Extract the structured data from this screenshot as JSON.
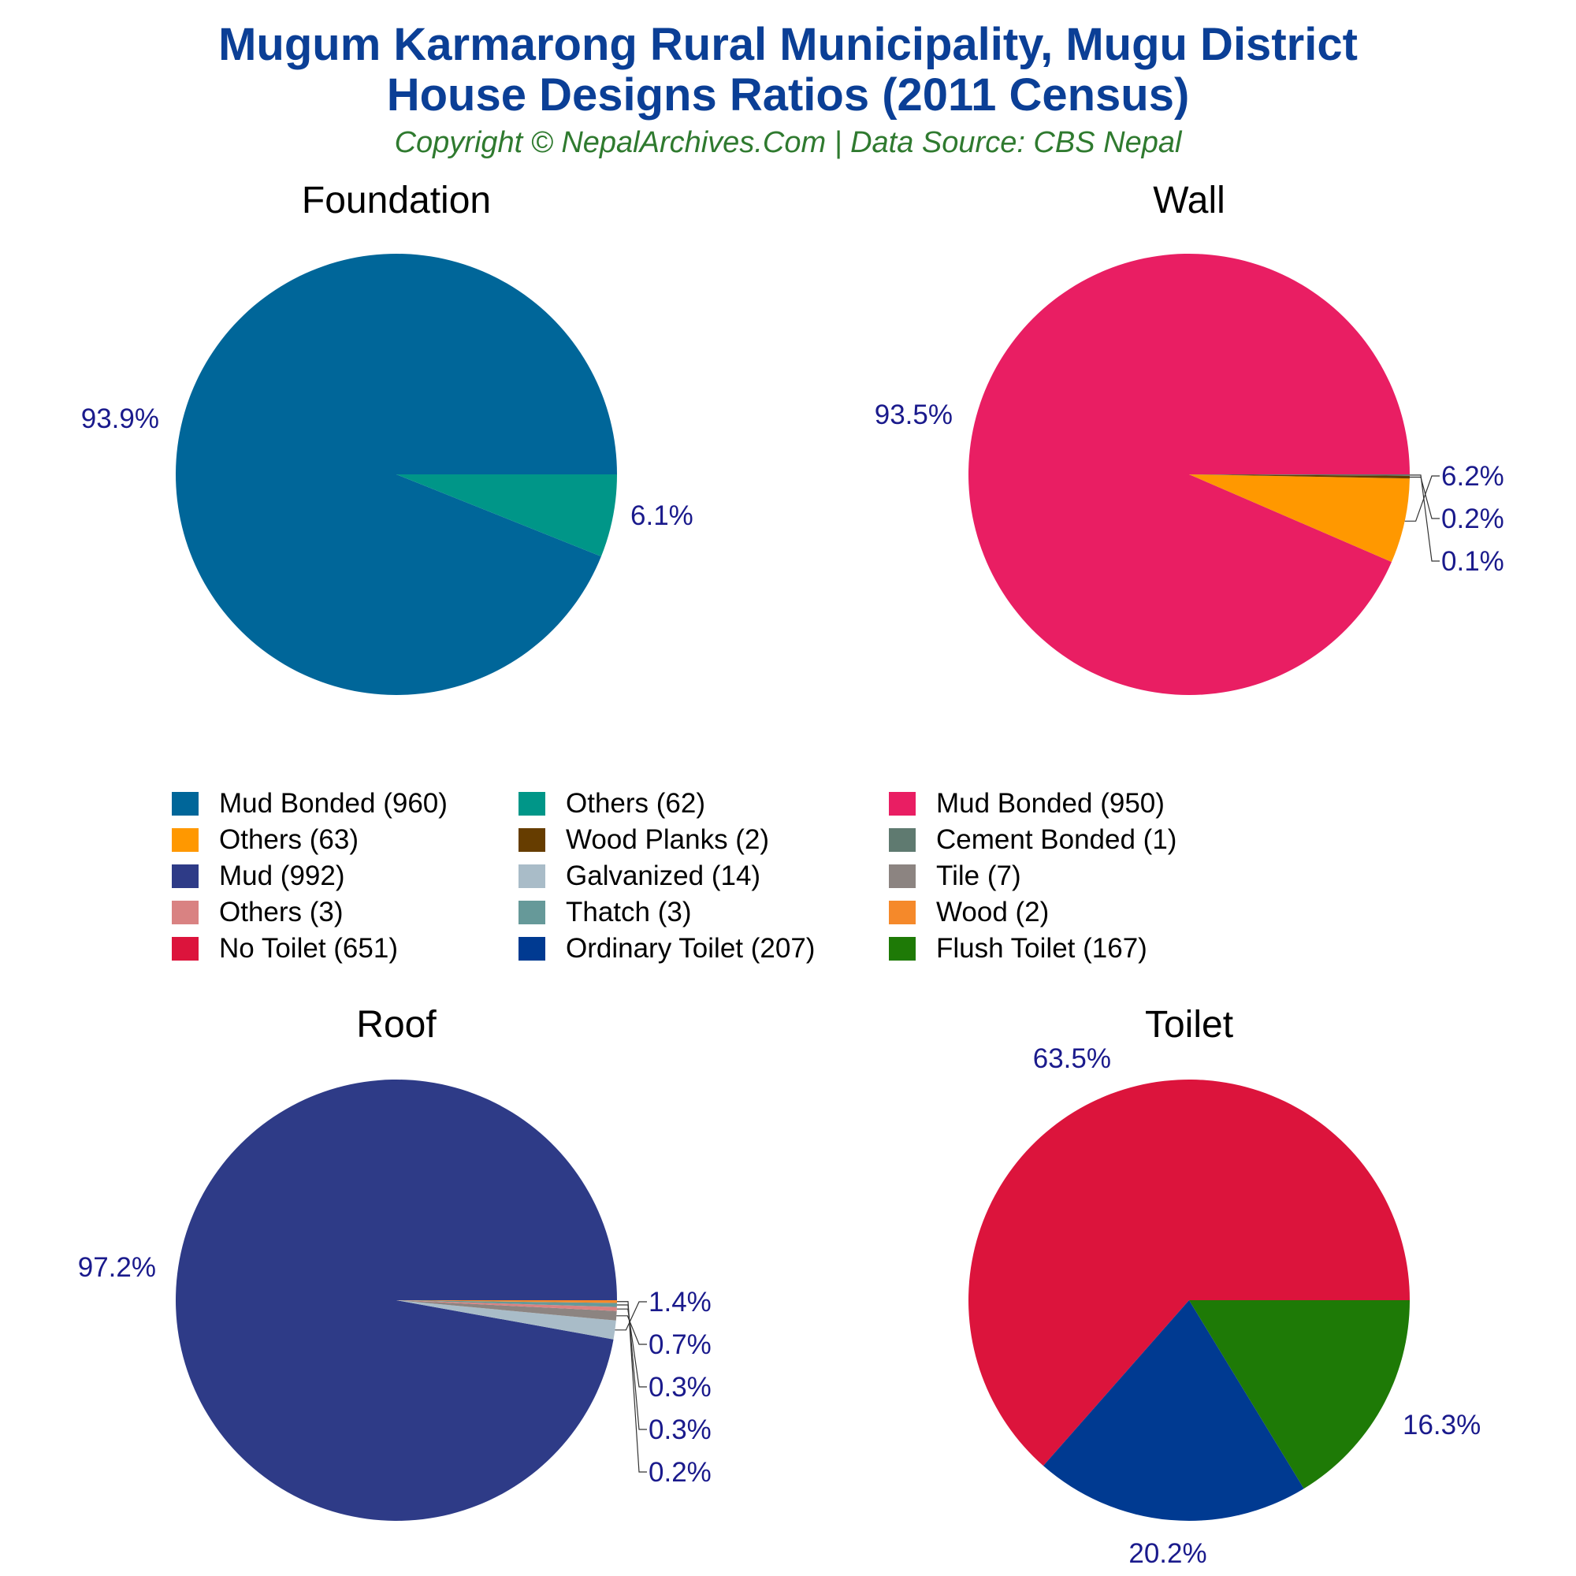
{
  "header": {
    "title_line1": "Mugum Karmarong Rural Municipality, Mugu District",
    "title_line2": "House Designs Ratios (2011 Census)",
    "subtitle": "Copyright © NepalArchives.Com | Data Source: CBS Nepal"
  },
  "colors": {
    "title": "#0b3f96",
    "subtitle": "#2f7a2f",
    "pct_label": "#1a1a8c"
  },
  "chart_data": [
    {
      "type": "pie",
      "title": "Foundation",
      "slices": [
        {
          "name": "Mud Bonded",
          "value": 960,
          "pct_label": "93.9%",
          "color": "#006699"
        },
        {
          "name": "Others",
          "value": 62,
          "pct_label": "6.1%",
          "color": "#009688"
        }
      ]
    },
    {
      "type": "pie",
      "title": "Wall",
      "slices": [
        {
          "name": "Mud Bonded",
          "value": 950,
          "pct_label": "93.5%",
          "color": "#e91e63"
        },
        {
          "name": "Others",
          "value": 63,
          "pct_label": "6.2%",
          "color": "#ff9800"
        },
        {
          "name": "Wood Planks",
          "value": 2,
          "pct_label": "0.2%",
          "color": "#663d00"
        },
        {
          "name": "Cement Bonded",
          "value": 1,
          "pct_label": "0.1%",
          "color": "#5f7a70"
        }
      ]
    },
    {
      "type": "pie",
      "title": "Roof",
      "slices": [
        {
          "name": "Mud",
          "value": 992,
          "pct_label": "97.2%",
          "color": "#2e3b87"
        },
        {
          "name": "Galvanized",
          "value": 14,
          "pct_label": "1.4%",
          "color": "#a9bcc8"
        },
        {
          "name": "Tile",
          "value": 7,
          "pct_label": "0.7%",
          "color": "#8c8481"
        },
        {
          "name": "Others",
          "value": 3,
          "pct_label": "0.3%",
          "color": "#d98282"
        },
        {
          "name": "Thatch",
          "value": 3,
          "pct_label": "0.3%",
          "color": "#669999"
        },
        {
          "name": "Wood",
          "value": 2,
          "pct_label": "0.2%",
          "color": "#f5892a"
        }
      ]
    },
    {
      "type": "pie",
      "title": "Toilet",
      "slices": [
        {
          "name": "No Toilet",
          "value": 651,
          "pct_label": "63.5%",
          "color": "#dc143c"
        },
        {
          "name": "Ordinary Toilet",
          "value": 207,
          "pct_label": "20.2%",
          "color": "#003a91"
        },
        {
          "name": "Flush Toilet",
          "value": 167,
          "pct_label": "16.3%",
          "color": "#1e7a06"
        }
      ]
    }
  ],
  "legend": [
    {
      "label": "Mud Bonded (960)",
      "color": "#006699"
    },
    {
      "label": "Others (62)",
      "color": "#009688"
    },
    {
      "label": "Mud Bonded (950)",
      "color": "#e91e63"
    },
    {
      "label": "Others (63)",
      "color": "#ff9800"
    },
    {
      "label": "Wood Planks (2)",
      "color": "#663d00"
    },
    {
      "label": "Cement Bonded (1)",
      "color": "#5f7a70"
    },
    {
      "label": "Mud (992)",
      "color": "#2e3b87"
    },
    {
      "label": "Galvanized (14)",
      "color": "#a9bcc8"
    },
    {
      "label": "Tile (7)",
      "color": "#8c8481"
    },
    {
      "label": "Others (3)",
      "color": "#d98282"
    },
    {
      "label": "Thatch (3)",
      "color": "#669999"
    },
    {
      "label": "Wood (2)",
      "color": "#f5892a"
    },
    {
      "label": "No Toilet (651)",
      "color": "#dc143c"
    },
    {
      "label": "Ordinary Toilet (207)",
      "color": "#003a91"
    },
    {
      "label": "Flush Toilet (167)",
      "color": "#1e7a06"
    }
  ]
}
